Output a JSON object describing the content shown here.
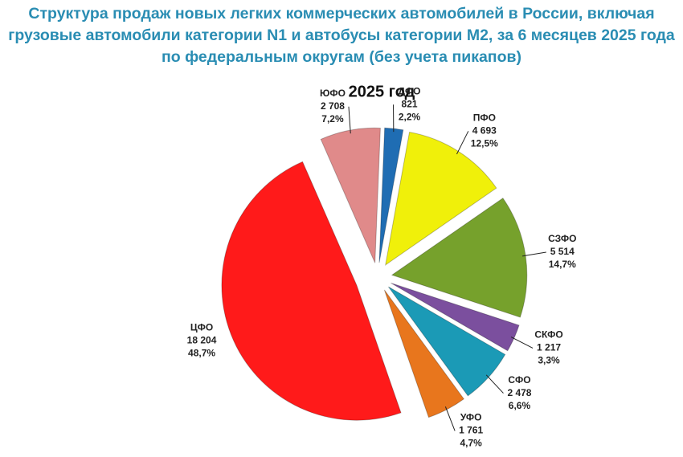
{
  "chart_data": {
    "type": "pie",
    "title": "Структура продаж новых легких коммерческих автомобилей в России, включая грузовые автомобили категории N1 и автобусы категории М2, за 6 месяцев 2025 года по федеральным округам (без учета пикапов)",
    "subtitle": "2025 год",
    "categories": [
      "ДФО",
      "ПФО",
      "СЗФО",
      "СКФО",
      "СФО",
      "УФО",
      "ЦФО",
      "ЮФО"
    ],
    "values": [
      2.2,
      12.5,
      14.7,
      3.3,
      6.6,
      4.7,
      48.7,
      7.2
    ],
    "value_labels": [
      "2,2%",
      "12,5%",
      "14,7%",
      "3,3%",
      "6,6%",
      "4,7%",
      "48,7%",
      "7,2%"
    ],
    "counts": [
      821,
      4693,
      5514,
      1217,
      2478,
      1761,
      18204,
      2708
    ],
    "count_labels": [
      "821",
      "4 693",
      "5 514",
      "1 217",
      "2 478",
      "1 761",
      "18 204",
      "2 708"
    ],
    "colors": [
      "#1f6db3",
      "#f0f00a",
      "#76a12c",
      "#7b4f9e",
      "#1b9ab6",
      "#e8761d",
      "#ff1a1a",
      "#e08a8a"
    ]
  }
}
